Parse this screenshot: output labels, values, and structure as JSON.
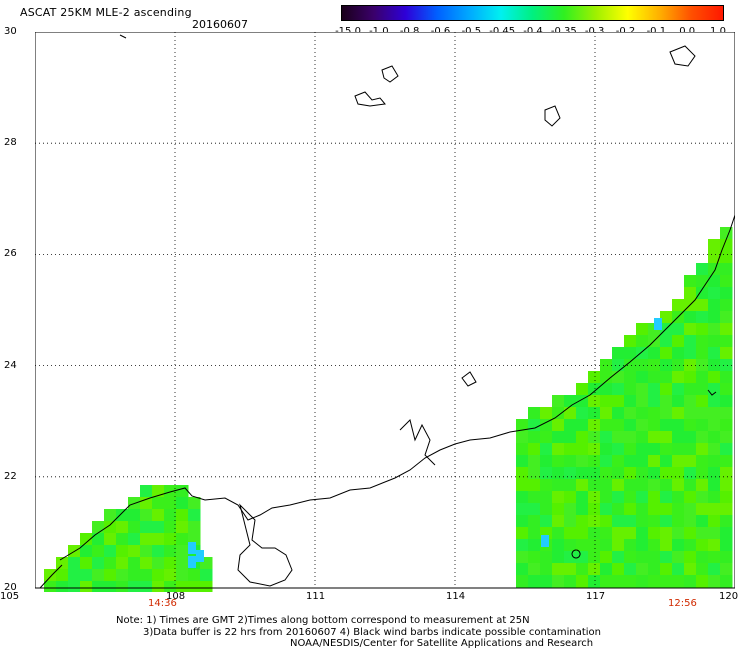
{
  "header": {
    "title": "ASCAT 25KM MLE-2 ascending",
    "date": "20160607"
  },
  "colorbar": {
    "labels": [
      "-15.0",
      "-1.0",
      "-0.8",
      "-0.6",
      "-0.5",
      "-0.45",
      "-0.4",
      "-0.35",
      "-0.3",
      "-0.2",
      "-0.1",
      "0.0",
      "1.0"
    ],
    "colors": [
      "#1a001a",
      "#3a006a",
      "#2e00d8",
      "#0060ff",
      "#00a8ff",
      "#00f0f0",
      "#00f080",
      "#30f020",
      "#a0f000",
      "#ffff00",
      "#ffb000",
      "#ff5000",
      "#ff1800"
    ]
  },
  "axes": {
    "lat_ticks": [
      "30",
      "28",
      "26",
      "24",
      "22",
      "20"
    ],
    "lon_ticks": [
      "105",
      "108",
      "111",
      "114",
      "117",
      "120"
    ]
  },
  "pass_times": [
    "14:36",
    "12:56"
  ],
  "notes": [
    "Note: 1) Times are GMT 2)Times along bottom correspond to measurement at 25N",
    "3)Data buffer is 22 hrs from 20160607 4) Black wind barbs indicate possible contamination",
    "NOAA/NESDIS/Center for Satellite Applications and Research"
  ]
}
